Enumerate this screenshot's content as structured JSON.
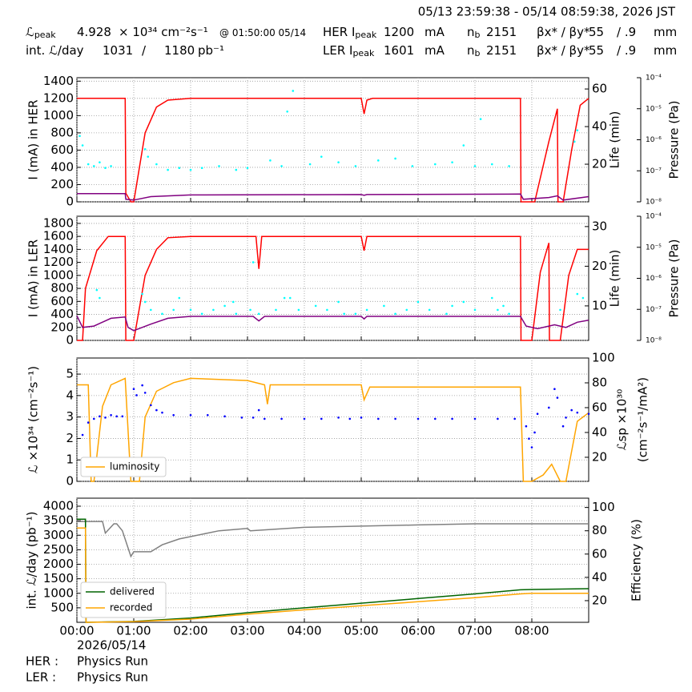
{
  "header": {
    "timestamp": "05/13 23:59:38 - 05/14 08:59:38, 2026 JST",
    "row1": [
      {
        "text": "ℒ",
        "sub": "peak"
      },
      {
        "text": "4.928"
      },
      {
        "text": "× 10³⁴ cm⁻²s⁻¹"
      },
      {
        "text": "@ 01:50:00 05/14"
      },
      {
        "text": "HER I",
        "sub": "peak"
      },
      {
        "text": "1200"
      },
      {
        "text": "mA"
      },
      {
        "text": "n",
        "sub": "b"
      },
      {
        "text": "2151"
      },
      {
        "text": "βx* / βy*"
      },
      {
        "text": "55"
      },
      {
        "text": "/ .9"
      },
      {
        "text": "mm"
      }
    ],
    "row2": [
      {
        "text": "int. ℒ/day"
      },
      {
        "text": "1031"
      },
      {
        "text": "/"
      },
      {
        "text": "1180"
      },
      {
        "text": "pb⁻¹"
      },
      {
        "text": "LER I",
        "sub": "peak"
      },
      {
        "text": "1601"
      },
      {
        "text": "mA"
      },
      {
        "text": "n",
        "sub": "b"
      },
      {
        "text": "2151"
      },
      {
        "text": "βx* / βy*"
      },
      {
        "text": "55"
      },
      {
        "text": "/ .9"
      },
      {
        "text": "mm"
      }
    ]
  },
  "footer": {
    "date": "2026/05/14",
    "her_label": "HER :",
    "her_mode": "Physics Run",
    "ler_label": "LER :",
    "ler_mode": "Physics Run"
  },
  "chart_data": [
    {
      "type": "line",
      "ylabel": "I (mA) in HER",
      "y2label": "Life (min)",
      "y3label": "Pressure (Pa)",
      "xlim": [
        0,
        9
      ],
      "xticks": [
        0,
        1,
        2,
        3,
        4,
        5,
        6,
        7,
        8
      ],
      "show_xtick_labels": false,
      "grid": true,
      "ylim": [
        0,
        1440
      ],
      "yticks": [
        0,
        200,
        400,
        600,
        800,
        1000,
        1200,
        1400
      ],
      "y2lim": [
        0,
        66
      ],
      "y2ticks": [
        20,
        40,
        60
      ],
      "y3lim": [
        1e-08,
        0.0001
      ],
      "y3log": true,
      "y3ticks": [
        {
          "value": 1e-08,
          "label": "10⁻⁸"
        },
        {
          "value": 1e-07,
          "label": "10⁻⁷"
        },
        {
          "value": 1e-06,
          "label": "10⁻⁶"
        },
        {
          "value": 1e-05,
          "label": "10⁻⁵"
        },
        {
          "value": 0.0001,
          "label": "10⁻⁴"
        }
      ],
      "series": [
        {
          "color": "#ff0000",
          "x": [
            0,
            0.85,
            0.86,
            0.95,
            1.0,
            1.2,
            1.4,
            1.6,
            2.0,
            5.0,
            5.05,
            5.1,
            5.2,
            7.0,
            7.8,
            7.81,
            8.05,
            8.3,
            8.45,
            8.46,
            8.55,
            8.7,
            8.85,
            9.0
          ],
          "values": [
            1200,
            1200,
            100,
            0,
            0,
            800,
            1100,
            1180,
            1200,
            1200,
            1020,
            1180,
            1200,
            1200,
            1200,
            0,
            0,
            700,
            1080,
            0,
            0,
            600,
            1120,
            1200
          ]
        },
        {
          "color": "#800080",
          "x": [
            0,
            0.85,
            0.86,
            1.0,
            1.3,
            2.0,
            5.0,
            5.05,
            5.1,
            7.8,
            7.85,
            8.3,
            8.45,
            8.55,
            9.0
          ],
          "values": [
            95,
            95,
            30,
            20,
            60,
            80,
            85,
            75,
            85,
            90,
            30,
            50,
            70,
            20,
            60
          ]
        },
        {
          "color": "#00ffff",
          "marker": "dot",
          "axis": "y2",
          "x": [
            0.05,
            0.1,
            0.2,
            0.3,
            0.4,
            0.5,
            0.6,
            1.2,
            1.25,
            1.4,
            1.6,
            1.8,
            2.0,
            2.2,
            2.5,
            2.8,
            3.0,
            3.4,
            3.6,
            3.7,
            3.8,
            4.1,
            4.3,
            4.6,
            4.9,
            5.3,
            5.6,
            5.9,
            6.3,
            6.6,
            6.8,
            7.0,
            7.1,
            7.3,
            7.6,
            8.75,
            8.8
          ],
          "values": [
            35,
            30,
            20,
            19,
            21,
            18,
            19,
            28,
            24,
            20,
            17,
            18,
            17,
            18,
            19,
            17,
            18,
            22,
            19,
            48,
            59,
            20,
            24,
            21,
            19,
            22,
            23,
            19,
            20,
            21,
            30,
            19,
            44,
            20,
            19,
            32,
            38
          ]
        }
      ]
    },
    {
      "type": "line",
      "ylabel": "I (mA) in LER",
      "y2label": "Life (min)",
      "y3label": "Pressure (Pa)",
      "xlim": [
        0,
        9
      ],
      "xticks": [
        0,
        1,
        2,
        3,
        4,
        5,
        6,
        7,
        8
      ],
      "show_xtick_labels": false,
      "grid": true,
      "ylim": [
        0,
        1910
      ],
      "yticks": [
        0,
        200,
        400,
        600,
        800,
        1000,
        1200,
        1400,
        1600,
        1800
      ],
      "y2lim": [
        1.3,
        32.6
      ],
      "y2ticks": [
        10,
        20,
        30
      ],
      "y3lim": [
        1e-08,
        0.0001
      ],
      "y3log": true,
      "y3ticks": [
        {
          "value": 1e-08,
          "label": "10⁻⁸"
        },
        {
          "value": 1e-07,
          "label": "10⁻⁷"
        },
        {
          "value": 1e-06,
          "label": "10⁻⁶"
        },
        {
          "value": 1e-05,
          "label": "10⁻⁵"
        },
        {
          "value": 0.0001,
          "label": "10⁻⁴"
        }
      ],
      "series": [
        {
          "color": "#ff0000",
          "x": [
            0,
            0.1,
            0.15,
            0.35,
            0.55,
            0.8,
            0.85,
            0.86,
            0.98,
            1.0,
            1.2,
            1.4,
            1.6,
            2.0,
            3.15,
            3.2,
            3.25,
            5.0,
            5.05,
            5.1,
            7.8,
            7.81,
            8.0,
            8.15,
            8.3,
            8.31,
            8.5,
            8.65,
            8.8,
            9.0
          ],
          "values": [
            0,
            0,
            800,
            1380,
            1600,
            1600,
            1600,
            0,
            0,
            0,
            1000,
            1400,
            1580,
            1600,
            1600,
            1100,
            1600,
            1600,
            1380,
            1600,
            1600,
            0,
            0,
            1050,
            1500,
            0,
            0,
            1000,
            1400,
            1400
          ]
        },
        {
          "color": "#800080",
          "x": [
            0,
            0.1,
            0.3,
            0.6,
            0.85,
            0.9,
            1.0,
            1.3,
            1.6,
            2.0,
            3.1,
            3.2,
            3.3,
            5.0,
            5.05,
            5.1,
            7.8,
            7.9,
            8.1,
            8.4,
            8.6,
            8.8,
            9.0
          ],
          "values": [
            380,
            200,
            220,
            340,
            360,
            200,
            150,
            250,
            340,
            370,
            370,
            300,
            370,
            370,
            330,
            370,
            370,
            220,
            180,
            240,
            200,
            280,
            310
          ]
        },
        {
          "color": "#00ffff",
          "marker": "dot",
          "axis": "y2",
          "x": [
            0.35,
            0.4,
            1.15,
            1.2,
            1.3,
            1.5,
            1.7,
            1.8,
            2.0,
            2.2,
            2.4,
            2.6,
            2.75,
            2.8,
            3.05,
            3.1,
            3.2,
            3.5,
            3.65,
            3.75,
            3.9,
            4.2,
            4.4,
            4.6,
            4.7,
            4.9,
            5.1,
            5.4,
            5.6,
            5.8,
            6.0,
            6.2,
            6.5,
            6.6,
            6.8,
            7.0,
            7.3,
            7.4,
            7.5,
            7.6,
            8.5,
            8.8,
            8.9
          ],
          "values": [
            14,
            12,
            13,
            11,
            9,
            8,
            9,
            12,
            9,
            8,
            9,
            10,
            11,
            8,
            9,
            21,
            8,
            9,
            12,
            12,
            9,
            10,
            9,
            11,
            8,
            8,
            9,
            10,
            8,
            9,
            11,
            9,
            8,
            10,
            11,
            9,
            12,
            9,
            10,
            8,
            9,
            13,
            12
          ]
        }
      ]
    },
    {
      "type": "line",
      "ylabel": "ℒ ×10³⁴ (cm⁻²s⁻¹)",
      "y2label": [
        "ℒsp ×10³⁰",
        "(cm⁻²s⁻¹/mA²)"
      ],
      "xlim": [
        0,
        9
      ],
      "xticks": [
        0,
        1,
        2,
        3,
        4,
        5,
        6,
        7,
        8
      ],
      "show_xtick_labels": false,
      "grid": true,
      "legend": "lower left",
      "ylim": [
        0,
        5.75
      ],
      "yticks": [
        0,
        1,
        2,
        3,
        4,
        5
      ],
      "y2lim": [
        0.6,
        100
      ],
      "y2ticks": [
        20,
        40,
        60,
        80,
        100
      ],
      "series": [
        {
          "name": "luminosity",
          "color": "#ffa500",
          "x": [
            0,
            0.2,
            0.25,
            0.3,
            0.45,
            0.6,
            0.85,
            0.95,
            1.05,
            1.1,
            1.2,
            1.4,
            1.7,
            2.0,
            3.0,
            3.3,
            3.35,
            3.4,
            4.0,
            5.0,
            5.05,
            5.15,
            6.0,
            7.8,
            7.85,
            8.0,
            8.2,
            8.35,
            8.5,
            8.6,
            8.8,
            9.0
          ],
          "values": [
            4.5,
            4.5,
            0,
            0,
            3.5,
            4.5,
            4.8,
            0,
            0,
            0,
            3.0,
            4.2,
            4.6,
            4.8,
            4.7,
            4.5,
            3.6,
            4.5,
            4.5,
            4.5,
            3.8,
            4.4,
            4.4,
            4.4,
            0,
            0,
            0.3,
            0.8,
            0,
            0,
            2.8,
            3.2
          ]
        },
        {
          "color": "#0000ff",
          "marker": "dot",
          "axis": "y2",
          "x": [
            0.1,
            0.2,
            0.3,
            0.4,
            0.5,
            0.6,
            0.7,
            0.8,
            1.0,
            1.05,
            1.15,
            1.2,
            1.3,
            1.4,
            1.5,
            1.7,
            2.0,
            2.3,
            2.6,
            2.9,
            3.1,
            3.2,
            3.3,
            3.6,
            4.0,
            4.3,
            4.6,
            4.8,
            5.0,
            5.3,
            5.6,
            6.0,
            6.3,
            6.6,
            7.0,
            7.4,
            7.7,
            7.9,
            7.95,
            8.0,
            8.05,
            8.1,
            8.3,
            8.4,
            8.45,
            8.55,
            8.6,
            8.7,
            8.8,
            9.0
          ],
          "values": [
            38,
            48,
            51,
            53,
            52,
            54,
            53,
            53,
            75,
            70,
            78,
            72,
            62,
            58,
            56,
            54,
            54,
            54,
            53,
            52,
            52,
            58,
            51,
            51,
            51,
            51,
            52,
            51,
            52,
            51,
            51,
            51,
            51,
            51,
            51,
            51,
            51,
            45,
            35,
            28,
            40,
            55,
            60,
            75,
            68,
            45,
            52,
            58,
            56,
            55
          ]
        }
      ]
    },
    {
      "type": "line",
      "ylabel": "int. ℒ/day (pb⁻¹)",
      "y2label": "Efficiency (%)",
      "xlim": [
        0,
        9
      ],
      "xticks": [
        {
          "value": 0,
          "label": "00:00"
        },
        {
          "value": 1,
          "label": "01:00"
        },
        {
          "value": 2,
          "label": "02:00"
        },
        {
          "value": 3,
          "label": "03:00"
        },
        {
          "value": 4,
          "label": "04:00"
        },
        {
          "value": 5,
          "label": "05:00"
        },
        {
          "value": 6,
          "label": "06:00"
        },
        {
          "value": 7,
          "label": "07:00"
        },
        {
          "value": 8,
          "label": "08:00"
        }
      ],
      "show_xtick_labels": true,
      "grid": true,
      "legend": "lower left",
      "ylim": [
        0,
        4276
      ],
      "yticks": [
        500,
        1000,
        1500,
        2000,
        2500,
        3000,
        3500,
        4000
      ],
      "y2lim": [
        1.4,
        108
      ],
      "y2ticks": [
        20,
        40,
        60,
        80,
        100
      ],
      "series": [
        {
          "color": "#808080",
          "axis": "y2",
          "x": [
            0,
            0.45,
            0.5,
            0.65,
            0.7,
            0.8,
            0.95,
            1.0,
            1.3,
            1.5,
            1.8,
            2.5,
            3.0,
            3.05,
            4.0,
            6.0,
            7.0,
            9.0
          ],
          "values": [
            88,
            88,
            78,
            86,
            86,
            80,
            58,
            62,
            62,
            68,
            73,
            80,
            82,
            80,
            83,
            85,
            86,
            86
          ]
        },
        {
          "name": "delivered",
          "color": "#006400",
          "x": [
            0,
            0.15,
            0.16,
            1.0,
            2.0,
            3.0,
            4.0,
            5.0,
            6.0,
            7.0,
            7.8,
            8.0,
            9.0
          ],
          "values": [
            3550,
            3550,
            0,
            30,
            150,
            330,
            500,
            660,
            820,
            980,
            1120,
            1130,
            1160
          ]
        },
        {
          "name": "recorded",
          "color": "#ffa500",
          "x": [
            0,
            0.15,
            0.16,
            1.0,
            2.0,
            3.0,
            4.0,
            5.0,
            6.0,
            7.0,
            7.8,
            8.0,
            9.0
          ],
          "values": [
            3250,
            3250,
            0,
            25,
            110,
            280,
            430,
            570,
            710,
            850,
            980,
            1000,
            1000
          ]
        }
      ]
    }
  ]
}
